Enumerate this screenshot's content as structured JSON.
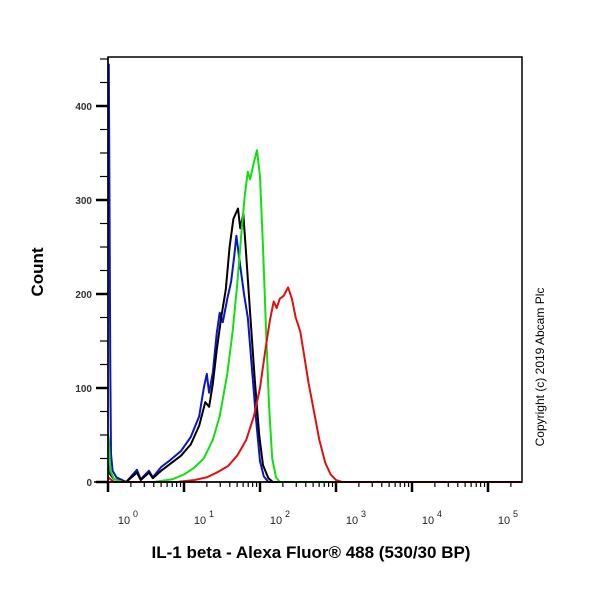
{
  "chart_data": {
    "type": "line",
    "title": "",
    "xlabel": "IL-1 beta - Alexa Fluor® 488 (530/30 BP)",
    "ylabel": "Count",
    "xscale": "log",
    "xlim": [
      1,
      316000
    ],
    "ylim": [
      0,
      450
    ],
    "x_ticks": [
      {
        "value": 1,
        "label_base": "10",
        "label_exp": "0"
      },
      {
        "value": 10,
        "label_base": "10",
        "label_exp": "1"
      },
      {
        "value": 100,
        "label_base": "10",
        "label_exp": "2"
      },
      {
        "value": 1000,
        "label_base": "10",
        "label_exp": "3"
      },
      {
        "value": 10000,
        "label_base": "10",
        "label_exp": "4"
      },
      {
        "value": 100000,
        "label_base": "10",
        "label_exp": "5"
      }
    ],
    "y_ticks": [
      0,
      100,
      200,
      300,
      400
    ],
    "grid": false,
    "legend": null,
    "annotation": "Copyright (c) 2019 Abcam Plc",
    "series": [
      {
        "name": "blue",
        "color": "#0a14c8",
        "points_log10x_count": [
          [
            0.01,
            445
          ],
          [
            0.02,
            300
          ],
          [
            0.03,
            120
          ],
          [
            0.04,
            30
          ],
          [
            0.06,
            12
          ],
          [
            0.11,
            5
          ],
          [
            0.24,
            0
          ],
          [
            0.38,
            13
          ],
          [
            0.43,
            3
          ],
          [
            0.54,
            12
          ],
          [
            0.59,
            5
          ],
          [
            0.7,
            16
          ],
          [
            0.83,
            24
          ],
          [
            0.96,
            33
          ],
          [
            1.09,
            48
          ],
          [
            1.2,
            70
          ],
          [
            1.26,
            100
          ],
          [
            1.3,
            115
          ],
          [
            1.33,
            95
          ],
          [
            1.38,
            117
          ],
          [
            1.43,
            158
          ],
          [
            1.47,
            180
          ],
          [
            1.51,
            170
          ],
          [
            1.57,
            195
          ],
          [
            1.62,
            213
          ],
          [
            1.66,
            240
          ],
          [
            1.69,
            262
          ],
          [
            1.74,
            230
          ],
          [
            1.79,
            200
          ],
          [
            1.84,
            175
          ],
          [
            1.89,
            125
          ],
          [
            1.95,
            65
          ],
          [
            2.0,
            22
          ],
          [
            2.05,
            6
          ],
          [
            2.11,
            0
          ],
          [
            5.5,
            0
          ]
        ]
      },
      {
        "name": "black",
        "color": "#000000",
        "points_log10x_count": [
          [
            0.01,
            20
          ],
          [
            0.03,
            8
          ],
          [
            0.08,
            3
          ],
          [
            0.24,
            0
          ],
          [
            0.38,
            10
          ],
          [
            0.43,
            2
          ],
          [
            0.54,
            10
          ],
          [
            0.59,
            4
          ],
          [
            0.7,
            12
          ],
          [
            0.83,
            20
          ],
          [
            0.96,
            28
          ],
          [
            1.09,
            40
          ],
          [
            1.2,
            60
          ],
          [
            1.28,
            85
          ],
          [
            1.33,
            80
          ],
          [
            1.38,
            105
          ],
          [
            1.43,
            140
          ],
          [
            1.49,
            175
          ],
          [
            1.55,
            205
          ],
          [
            1.6,
            250
          ],
          [
            1.65,
            280
          ],
          [
            1.71,
            291
          ],
          [
            1.74,
            270
          ],
          [
            1.78,
            285
          ],
          [
            1.82,
            240
          ],
          [
            1.87,
            180
          ],
          [
            1.93,
            110
          ],
          [
            1.99,
            50
          ],
          [
            2.04,
            18
          ],
          [
            2.11,
            4
          ],
          [
            2.17,
            0
          ],
          [
            5.5,
            0
          ]
        ]
      },
      {
        "name": "green",
        "color": "#10e010",
        "points_log10x_count": [
          [
            0.0,
            50
          ],
          [
            0.01,
            45
          ],
          [
            0.03,
            12
          ],
          [
            0.08,
            3
          ],
          [
            0.2,
            0
          ],
          [
            0.6,
            0
          ],
          [
            0.85,
            3
          ],
          [
            1.0,
            8
          ],
          [
            1.13,
            15
          ],
          [
            1.26,
            25
          ],
          [
            1.38,
            45
          ],
          [
            1.47,
            70
          ],
          [
            1.57,
            115
          ],
          [
            1.64,
            160
          ],
          [
            1.7,
            210
          ],
          [
            1.75,
            260
          ],
          [
            1.8,
            305
          ],
          [
            1.84,
            330
          ],
          [
            1.87,
            322
          ],
          [
            1.92,
            340
          ],
          [
            1.96,
            353
          ],
          [
            2.0,
            325
          ],
          [
            2.04,
            250
          ],
          [
            2.08,
            160
          ],
          [
            2.12,
            80
          ],
          [
            2.16,
            25
          ],
          [
            2.21,
            5
          ],
          [
            2.26,
            0
          ],
          [
            5.5,
            0
          ]
        ]
      },
      {
        "name": "red",
        "color": "#e01010",
        "points_log10x_count": [
          [
            0.0,
            5
          ],
          [
            0.03,
            3
          ],
          [
            0.08,
            0
          ],
          [
            0.9,
            0
          ],
          [
            1.13,
            2
          ],
          [
            1.3,
            5
          ],
          [
            1.43,
            10
          ],
          [
            1.58,
            17
          ],
          [
            1.7,
            28
          ],
          [
            1.82,
            45
          ],
          [
            1.92,
            70
          ],
          [
            2.0,
            100
          ],
          [
            2.07,
            140
          ],
          [
            2.13,
            172
          ],
          [
            2.18,
            192
          ],
          [
            2.22,
            185
          ],
          [
            2.26,
            195
          ],
          [
            2.31,
            198
          ],
          [
            2.37,
            207
          ],
          [
            2.42,
            195
          ],
          [
            2.47,
            175
          ],
          [
            2.53,
            160
          ],
          [
            2.58,
            135
          ],
          [
            2.64,
            105
          ],
          [
            2.71,
            75
          ],
          [
            2.78,
            45
          ],
          [
            2.86,
            20
          ],
          [
            2.93,
            8
          ],
          [
            3.0,
            2
          ],
          [
            3.08,
            0
          ],
          [
            5.5,
            0
          ]
        ]
      }
    ]
  }
}
